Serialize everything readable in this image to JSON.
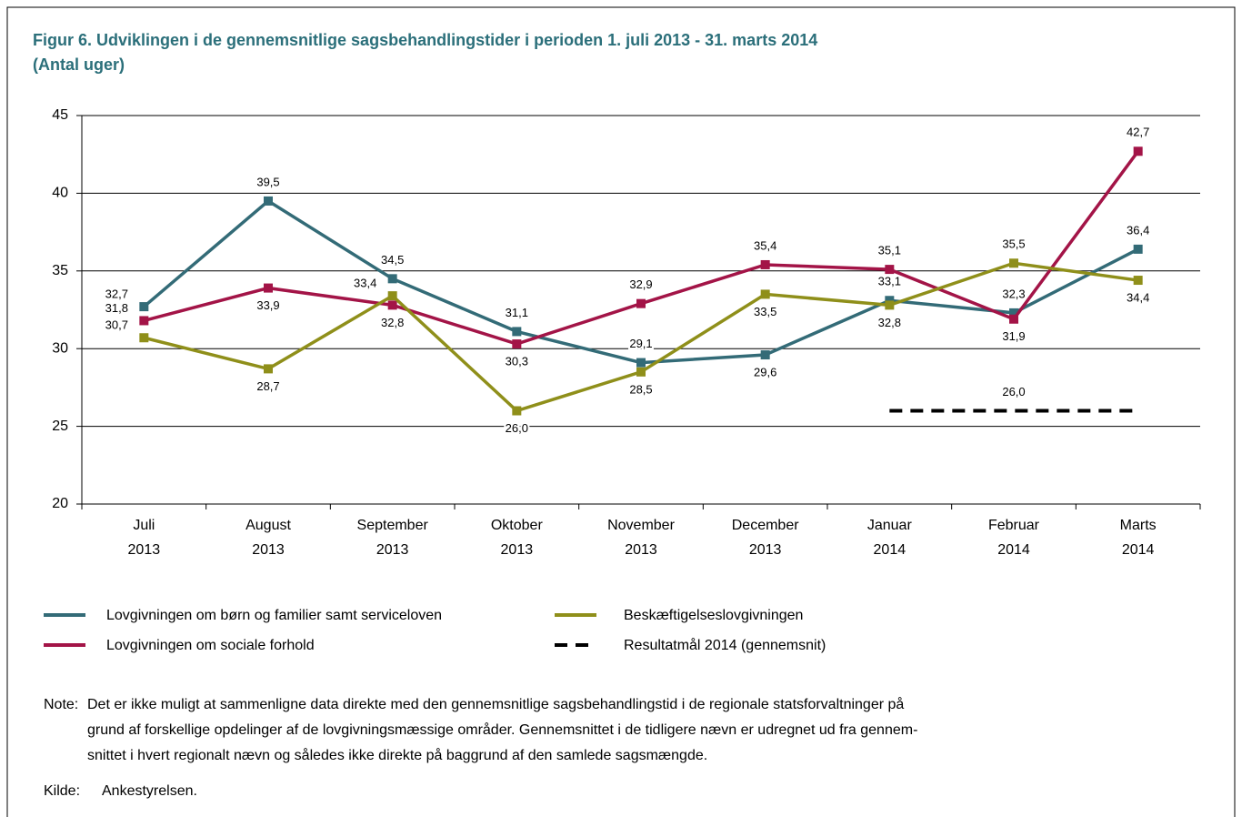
{
  "chart_data": {
    "type": "line",
    "title": [
      "Figur 6. Udviklingen i de gennemsnitlige sagsbehandlingstider i perioden 1. juli 2013 - 31. marts 2014",
      "(Antal uger)"
    ],
    "categories": [
      [
        "Juli",
        "2013"
      ],
      [
        "August",
        "2013"
      ],
      [
        "September",
        "2013"
      ],
      [
        "Oktober",
        "2013"
      ],
      [
        "November",
        "2013"
      ],
      [
        "December",
        "2013"
      ],
      [
        "Januar",
        "2014"
      ],
      [
        "Februar",
        "2014"
      ],
      [
        "Marts",
        "2014"
      ]
    ],
    "series": [
      {
        "name": "Lovgivningen om børn og familier samt serviceloven",
        "color": "#336b77",
        "dash": false,
        "values": [
          32.7,
          39.5,
          34.5,
          31.1,
          29.1,
          29.6,
          33.1,
          32.3,
          36.4
        ],
        "value_labels": [
          "32,7",
          "39,5",
          "34,5",
          "31,1",
          "29,1",
          "29,6",
          "33,1",
          "32,3",
          "36,4"
        ]
      },
      {
        "name": "Lovgivningen om sociale forhold",
        "color": "#a31447",
        "dash": false,
        "values": [
          31.8,
          33.9,
          32.8,
          30.3,
          32.9,
          35.4,
          35.1,
          31.9,
          42.7
        ],
        "value_labels": [
          "31,8",
          "33,9",
          "32,8",
          "30,3",
          "32,9",
          "35,4",
          "35,1",
          "31,9",
          "42,7"
        ]
      },
      {
        "name": "Beskæftigelseslovgivningen",
        "color": "#8f8f1a",
        "dash": false,
        "values": [
          30.7,
          28.7,
          33.4,
          26.0,
          28.5,
          33.5,
          32.8,
          35.5,
          34.4
        ],
        "value_labels": [
          "30,7",
          "28,7",
          "33,4",
          "26,0",
          "28,5",
          "33,5",
          "32,8",
          "35,5",
          "34,4"
        ]
      },
      {
        "name": "Resultatmål 2014 (gennemsnit)",
        "color": "#000000",
        "dash": true,
        "values": [
          null,
          null,
          null,
          null,
          null,
          null,
          26.0,
          26.0,
          26.0
        ],
        "value_labels": [
          null,
          null,
          null,
          null,
          null,
          null,
          null,
          "26,0",
          null
        ]
      }
    ],
    "ylim": [
      20,
      45
    ],
    "yticks": [
      20,
      25,
      30,
      35,
      40,
      45
    ],
    "grid": true
  },
  "note": {
    "label": "Note:",
    "lines": [
      "Det er ikke muligt at sammenligne data direkte med den gennemsnitlige sagsbehandlingstid i de regionale statsforvaltninger på",
      "grund af forskellige opdelinger af de lovgivningsmæssige områder. Gennemsnittet i de tidligere nævn er udregnet ud fra gennem-",
      "snittet i hvert regionalt nævn og således ikke direkte på baggrund af den samlede sagsmængde."
    ]
  },
  "source": {
    "label": "Kilde:",
    "text": "Ankestyrelsen."
  }
}
